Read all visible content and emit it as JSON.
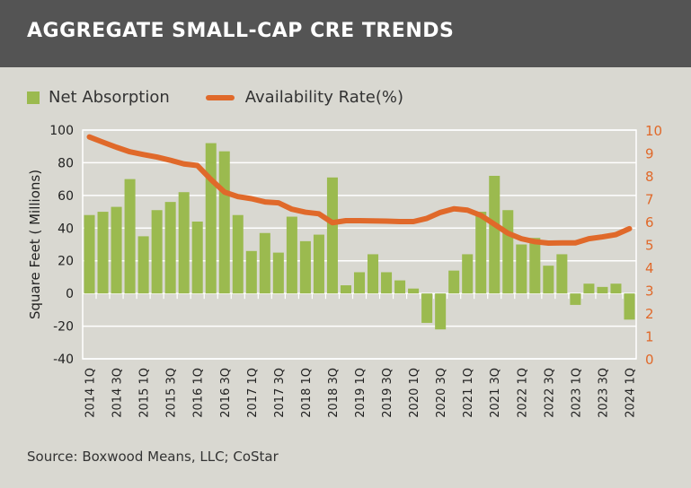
{
  "title": "AGGREGATE SMALL-CAP CRE TRENDS",
  "source": "Source: Boxwood Means, LLC; CoStar",
  "chart_data": {
    "type": "bar+line",
    "title": "AGGREGATE SMALL-CAP CRE TRENDS",
    "ylabel": "Square Feet ( Millions)",
    "ylim": [
      -40,
      100
    ],
    "y_ticks": [
      -40,
      -20,
      0,
      20,
      40,
      60,
      80,
      100
    ],
    "y2lim": [
      0,
      10
    ],
    "y2_ticks": [
      0,
      1,
      2,
      3,
      4,
      5,
      6,
      7,
      8,
      9,
      10
    ],
    "grid": true,
    "legend": "top-left",
    "colors": {
      "bar": "#9bba4f",
      "line": "#e0692a",
      "right_axis": "#e0692a"
    },
    "categories": [
      "2014 1Q",
      "2014 2Q",
      "2014 3Q",
      "2014 4Q",
      "2015 1Q",
      "2015 2Q",
      "2015 3Q",
      "2015 4Q",
      "2016 1Q",
      "2016 2Q",
      "2016 3Q",
      "2016 4Q",
      "2017 1Q",
      "2017 2Q",
      "2017 3Q",
      "2017 4Q",
      "2018 1Q",
      "2018 2Q",
      "2018 3Q",
      "2018 4Q",
      "2019 1Q",
      "2019 2Q",
      "2019 3Q",
      "2019 4Q",
      "2020 1Q",
      "2020 2Q",
      "2020 3Q",
      "2020 4Q",
      "2021 1Q",
      "2021 2Q",
      "2021 3Q",
      "2021 4Q",
      "2022 1Q",
      "2022 2Q",
      "2022 3Q",
      "2022 4Q",
      "2023 1Q",
      "2023 2Q",
      "2023 3Q",
      "2023 4Q",
      "2024 1Q"
    ],
    "x_tick_labels": [
      "2014 1Q",
      "2014 3Q",
      "2015 1Q",
      "2015 3Q",
      "2016 1Q",
      "2016 3Q",
      "2017 1Q",
      "2017 3Q",
      "2018 1Q",
      "2018 3Q",
      "2019 1Q",
      "2019 3Q",
      "2020 1Q",
      "2020 3Q",
      "2021 1Q",
      "2021 3Q",
      "2022 1Q",
      "2022 3Q",
      "2023 1Q",
      "2023 3Q",
      "2024 1Q"
    ],
    "series": [
      {
        "name": "Net Absorption",
        "type": "bar",
        "axis": "left",
        "values": [
          48,
          50,
          53,
          70,
          35,
          51,
          56,
          62,
          44,
          92,
          87,
          48,
          26,
          37,
          25,
          47,
          32,
          36,
          71,
          5,
          13,
          24,
          13,
          8,
          3,
          -18,
          -22,
          14,
          24,
          50,
          72,
          51,
          30,
          34,
          17,
          24,
          -7,
          6,
          4,
          6,
          -16
        ]
      },
      {
        "name": "Availability Rate(%)",
        "type": "line",
        "axis": "right",
        "values": [
          9.7,
          9.47,
          9.25,
          9.05,
          8.93,
          8.82,
          8.68,
          8.52,
          8.45,
          7.84,
          7.29,
          7.09,
          7.0,
          6.86,
          6.82,
          6.54,
          6.41,
          6.34,
          5.95,
          6.04,
          6.04,
          6.03,
          6.02,
          6.0,
          6.0,
          6.14,
          6.4,
          6.56,
          6.5,
          6.27,
          5.88,
          5.49,
          5.25,
          5.12,
          5.06,
          5.07,
          5.07,
          5.25,
          5.33,
          5.43,
          5.69
        ]
      }
    ]
  }
}
